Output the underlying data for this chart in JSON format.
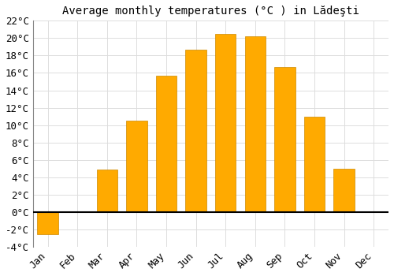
{
  "title": "Average monthly temperatures (°C ) in Lădeşti",
  "months": [
    "Jan",
    "Feb",
    "Mar",
    "Apr",
    "May",
    "Jun",
    "Jul",
    "Aug",
    "Sep",
    "Oct",
    "Nov",
    "Dec"
  ],
  "values": [
    -2.5,
    0,
    4.9,
    10.5,
    15.7,
    18.7,
    20.5,
    20.2,
    16.7,
    11.0,
    5.0,
    0
  ],
  "bar_color": "#FFAA00",
  "bar_edge_color": "#CC8800",
  "background_color": "#FFFFFF",
  "grid_color": "#DDDDDD",
  "ylim": [
    -4,
    22
  ],
  "yticks": [
    -4,
    -2,
    0,
    2,
    4,
    6,
    8,
    10,
    12,
    14,
    16,
    18,
    20,
    22
  ],
  "title_fontsize": 10,
  "tick_fontsize": 9,
  "zero_line_color": "#000000",
  "bar_width": 0.7
}
